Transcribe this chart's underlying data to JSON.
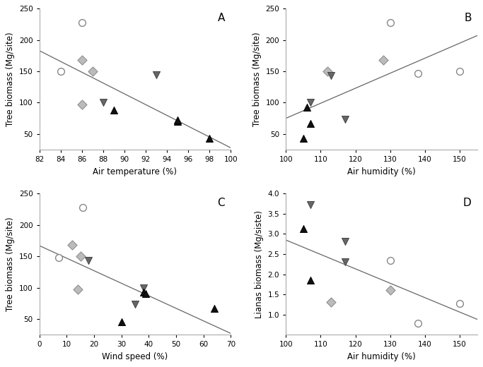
{
  "panel_A": {
    "title": "A",
    "xlabel": "Air temperature (%)",
    "ylabel": "Tree biomass (Mg/site)",
    "xlim": [
      82,
      100
    ],
    "ylim": [
      25,
      250
    ],
    "xticks": [
      82,
      84,
      86,
      88,
      90,
      92,
      94,
      96,
      98,
      100
    ],
    "yticks": [
      50,
      100,
      150,
      200,
      250
    ],
    "scatter": {
      "circle_open": {
        "x": [
          84,
          86
        ],
        "y": [
          150,
          228
        ]
      },
      "diamond_light": {
        "x": [
          86,
          87,
          86
        ],
        "y": [
          168,
          150,
          97
        ]
      },
      "triangle_down_dark": {
        "x": [
          88,
          93
        ],
        "y": [
          100,
          144
        ]
      },
      "triangle_up_dark": {
        "x": [
          89,
          95,
          95,
          98
        ],
        "y": [
          88,
          70,
          72,
          43
        ]
      }
    },
    "line": {
      "x": [
        82,
        100
      ],
      "y": [
        183,
        28
      ]
    }
  },
  "panel_B": {
    "title": "B",
    "xlabel": "Air humidity (%)",
    "ylabel": "Tree biomass (Mg/site)",
    "xlim": [
      100,
      155
    ],
    "ylim": [
      25,
      250
    ],
    "xticks": [
      100,
      110,
      120,
      130,
      140,
      150
    ],
    "yticks": [
      50,
      100,
      150,
      200,
      250
    ],
    "scatter": {
      "circle_open": {
        "x": [
          130,
          138,
          150
        ],
        "y": [
          228,
          147,
          150
        ]
      },
      "diamond_light": {
        "x": [
          112,
          128
        ],
        "y": [
          150,
          168
        ]
      },
      "triangle_down_dark": {
        "x": [
          113,
          107,
          117
        ],
        "y": [
          143,
          100,
          73
        ]
      },
      "triangle_up_dark": {
        "x": [
          105,
          107,
          106
        ],
        "y": [
          43,
          67,
          93
        ]
      }
    },
    "line": {
      "x": [
        100,
        155
      ],
      "y": [
        75,
        207
      ]
    }
  },
  "panel_C": {
    "title": "C",
    "xlabel": "Wind speed (%)",
    "ylabel": "Tree biomass (Mg/site)",
    "xlim": [
      0,
      70
    ],
    "ylim": [
      25,
      250
    ],
    "xticks": [
      0,
      10,
      20,
      30,
      40,
      50,
      60,
      70
    ],
    "yticks": [
      50,
      100,
      150,
      200,
      250
    ],
    "scatter": {
      "circle_open": {
        "x": [
          7,
          16
        ],
        "y": [
          148,
          228
        ]
      },
      "diamond_light": {
        "x": [
          12,
          15,
          14
        ],
        "y": [
          168,
          150,
          97
        ]
      },
      "triangle_down_dark": {
        "x": [
          18,
          35,
          38
        ],
        "y": [
          143,
          73,
          100
        ]
      },
      "triangle_up_dark": {
        "x": [
          30,
          38,
          39,
          64
        ],
        "y": [
          45,
          93,
          90,
          67
        ]
      }
    },
    "line": {
      "x": [
        0,
        70
      ],
      "y": [
        167,
        27
      ]
    }
  },
  "panel_D": {
    "title": "D",
    "xlabel": "Air humidity (%)",
    "ylabel": "Lianas biomass (Mg/siste)",
    "xlim": [
      100,
      155
    ],
    "ylim": [
      0.5,
      4.0
    ],
    "xticks": [
      100,
      110,
      120,
      130,
      140,
      150
    ],
    "yticks": [
      1.0,
      1.5,
      2.0,
      2.5,
      3.0,
      3.5,
      4.0
    ],
    "scatter": {
      "circle_open": {
        "x": [
          130,
          138,
          150
        ],
        "y": [
          2.35,
          0.78,
          1.28
        ]
      },
      "diamond_light": {
        "x": [
          113,
          130
        ],
        "y": [
          1.3,
          1.6
        ]
      },
      "triangle_down_dark": {
        "x": [
          107,
          117,
          117
        ],
        "y": [
          3.72,
          2.3,
          2.82
        ]
      },
      "triangle_up_dark": {
        "x": [
          105,
          107
        ],
        "y": [
          3.13,
          1.85
        ]
      }
    },
    "line": {
      "x": [
        100,
        155
      ],
      "y": [
        2.85,
        0.88
      ]
    }
  },
  "marker_styles": {
    "circle_open": {
      "marker": "o",
      "facecolor": "white",
      "edgecolor": "#888888",
      "s": 50,
      "linewidths": 1.0
    },
    "diamond_light": {
      "marker": "D",
      "facecolor": "#bbbbbb",
      "edgecolor": "#888888",
      "s": 45,
      "linewidths": 0.7
    },
    "triangle_down_dark": {
      "marker": "v",
      "facecolor": "#666666",
      "edgecolor": "#444444",
      "s": 52,
      "linewidths": 0.7
    },
    "triangle_up_dark": {
      "marker": "^",
      "facecolor": "#111111",
      "edgecolor": "#000000",
      "s": 52,
      "linewidths": 0.7
    }
  },
  "line_color": "#666666",
  "bg_color": "#ffffff",
  "spine_color": "#aaaaaa"
}
